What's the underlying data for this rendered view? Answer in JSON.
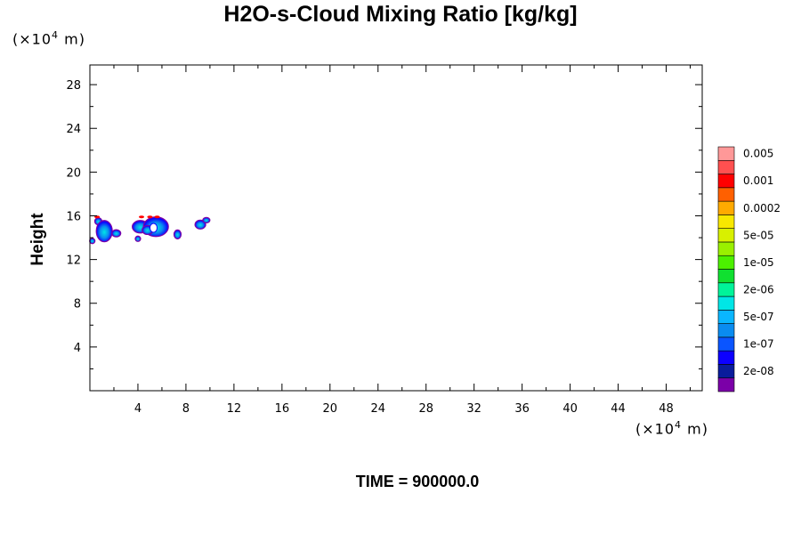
{
  "chart_data": {
    "type": "heatmap",
    "title": "H2O-s-Cloud Mixing Ratio [kg/kg]",
    "ylabel": "Height",
    "x_unit": "(×10",
    "y_unit": "(×10",
    "unit_exponent": "4",
    "unit_suffix": " m)",
    "footer": "TIME = 900000.0",
    "xlim": [
      0,
      51
    ],
    "ylim": [
      0,
      29.8
    ],
    "x_ticks": [
      4,
      8,
      12,
      16,
      20,
      24,
      28,
      32,
      36,
      40,
      44,
      48
    ],
    "y_ticks": [
      4,
      8,
      12,
      16,
      20,
      24,
      28
    ],
    "colorbar": {
      "colors": [
        "#7b00a8",
        "#0a1c9c",
        "#0c00ff",
        "#0a55ff",
        "#0a8cf0",
        "#0ab6ff",
        "#00e6e6",
        "#00f49a",
        "#10e030",
        "#4cf000",
        "#9af000",
        "#d8f000",
        "#f8e800",
        "#ffaa00",
        "#ff6000",
        "#ff0000",
        "#ff5050",
        "#ff9898"
      ],
      "labels": [
        "2e-08",
        "1e-07",
        "5e-07",
        "2e-06",
        "1e-05",
        "5e-05",
        "0.0002",
        "0.001",
        "0.005"
      ]
    },
    "cloud_patches": [
      {
        "x": 0.2,
        "y": 13.7,
        "value": "5e-07"
      },
      {
        "x": 1.2,
        "y": 14.8,
        "value": "2e-06"
      },
      {
        "x": 2.2,
        "y": 14.4,
        "value": "1e-07"
      },
      {
        "x": 4.2,
        "y": 15.2,
        "value": "5e-07"
      },
      {
        "x": 5.5,
        "y": 15.0,
        "value": "2e-06"
      },
      {
        "x": 7.3,
        "y": 14.3,
        "value": "1e-07"
      },
      {
        "x": 9.5,
        "y": 15.2,
        "value": "1e-07"
      }
    ]
  }
}
